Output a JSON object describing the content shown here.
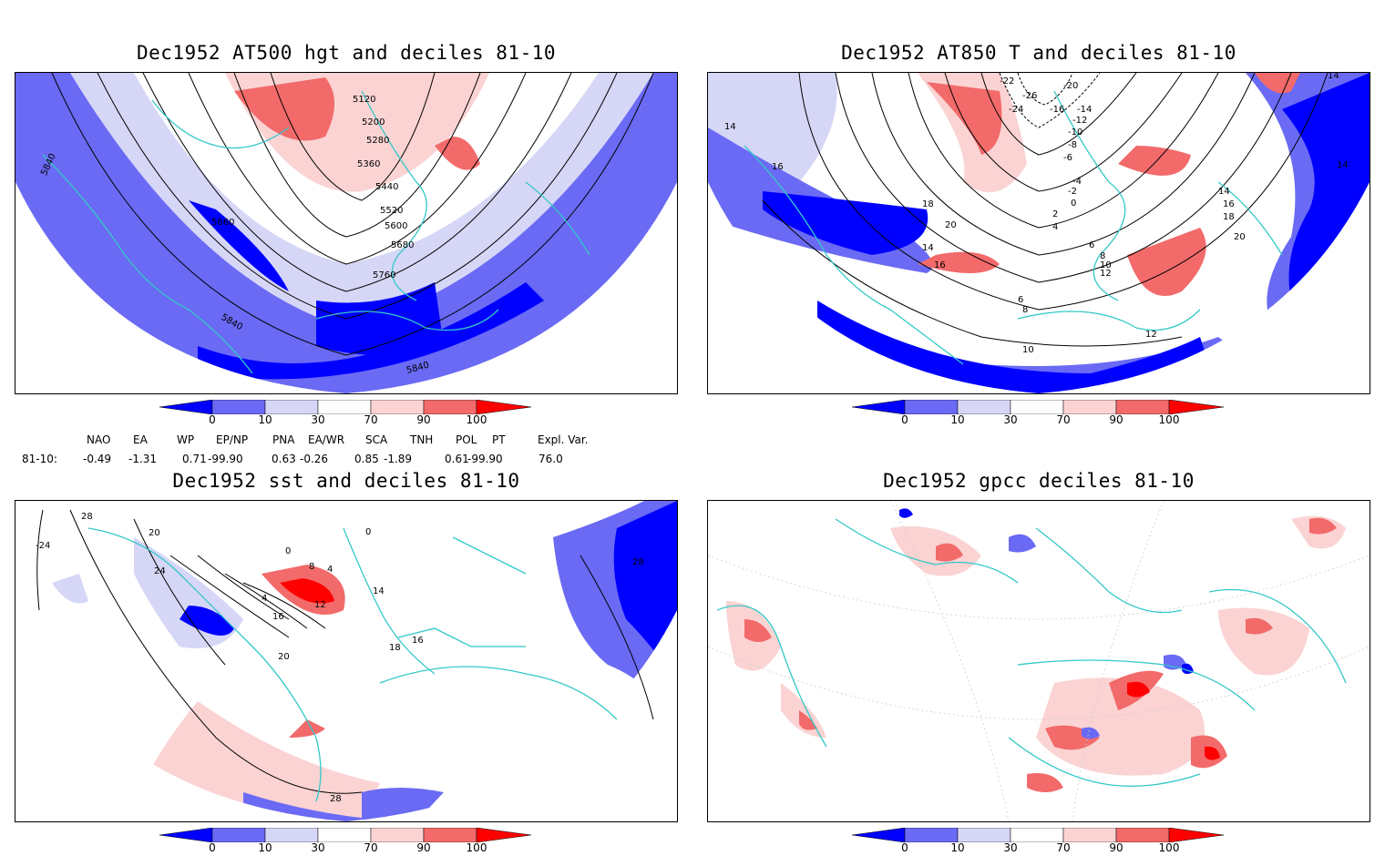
{
  "panels": {
    "hgt": {
      "title": "Dec1952 AT500 hgt and deciles 81-10",
      "contour_labels": [
        "5120",
        "5200",
        "5280",
        "5360",
        "5440",
        "5520",
        "5600",
        "5680",
        "5760",
        "5660",
        "5840",
        "5840",
        "5840"
      ]
    },
    "t850": {
      "title": "Dec1952 AT850 T and deciles 81-10",
      "contour_labels": [
        "-22",
        "-20",
        "-24",
        "-26",
        "-16",
        "-14",
        "-12",
        "-10",
        "-8",
        "-6",
        "-4",
        "-2",
        "0",
        "2",
        "4",
        "6",
        "8",
        "10",
        "12",
        "14",
        "16",
        "18",
        "20",
        "14",
        "16",
        "6",
        "8",
        "10",
        "12",
        "14",
        "16",
        "18",
        "20",
        "14",
        "14"
      ]
    },
    "sst": {
      "title": "Dec1952 sst and deciles 81-10",
      "contour_labels": [
        "28",
        "20",
        "24",
        "-24",
        "4",
        "8",
        "12",
        "16",
        "20",
        "0",
        "0",
        "4",
        "14",
        "16",
        "18",
        "28",
        "28"
      ]
    },
    "gpcc": {
      "title": "Dec1952 gpcc deciles 81-10",
      "contour_labels": []
    }
  },
  "colorbar": {
    "ticks": [
      "0",
      "10",
      "30",
      "70",
      "90",
      "100"
    ],
    "colors": [
      "#0000ff",
      "#6a6af5",
      "#d6d6f7",
      "#ffffff",
      "#fbd3d3",
      "#f26a6a",
      "#ff0000"
    ]
  },
  "teleconnections": {
    "headers": [
      "NAO",
      "EA",
      "WP",
      "EP/NP",
      "PNA",
      "EA/WR",
      "SCA",
      "TNH",
      "POL",
      "PT",
      "Expl. Var."
    ],
    "row_label": "81-10:",
    "values": [
      "-0.49",
      "-1.31",
      "0.71",
      "-99.90",
      "0.63",
      "-0.26",
      "0.85",
      "-1.89",
      "0.61",
      "-99.90",
      "76.0"
    ]
  }
}
